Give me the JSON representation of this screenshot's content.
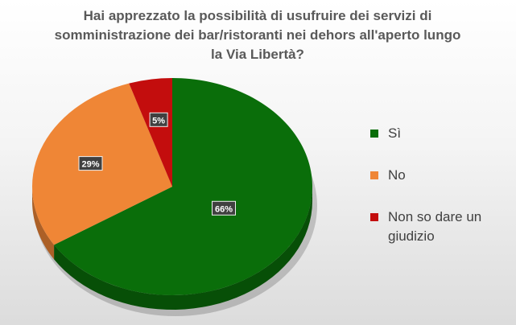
{
  "chart_data": {
    "type": "pie",
    "title": "Hai apprezzato la possibilità di usufruire dei servizi di somministrazione dei bar/ristoranti nei dehors all'aperto lungo la Via Libertà?",
    "categories": [
      "Sì",
      "No",
      "Non so dare un giudizio"
    ],
    "values": [
      66,
      29,
      5
    ],
    "data_labels": [
      "66%",
      "29%",
      "5%"
    ],
    "colors": [
      "#0a6e0a",
      "#ef8636",
      "#c30d0d"
    ],
    "legend_position": "right",
    "style": "3d"
  }
}
